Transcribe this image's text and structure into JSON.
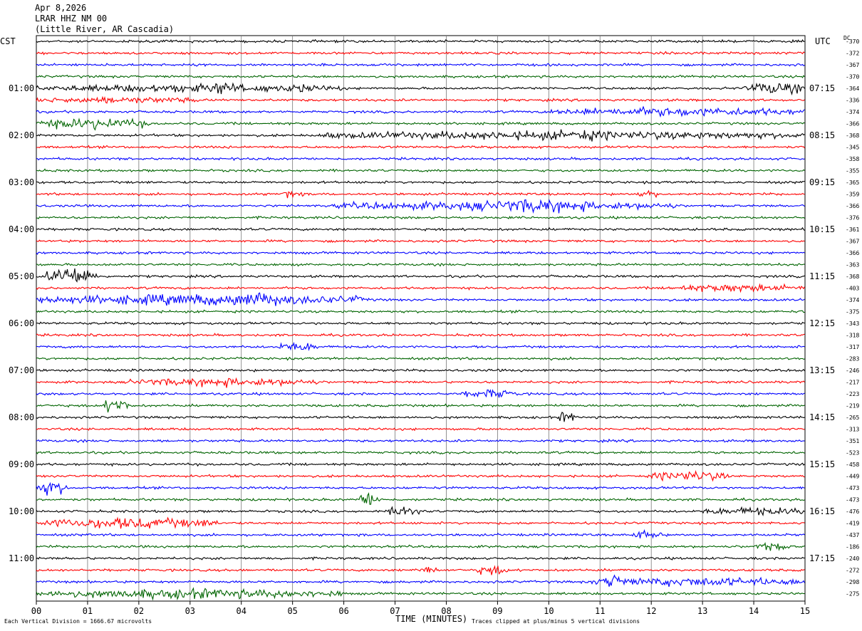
{
  "header": {
    "date": "Apr 8,2026",
    "station": "LRAR HHZ NM 00",
    "location": "(Little River, AR Cascadia)"
  },
  "left_tz": "CST",
  "right_tz": "UTC",
  "dc_label": "DC",
  "x_axis_title": "TIME (MINUTES)",
  "footer_left": "Each Vertical Division = 1666.67 microvolts",
  "footer_right": "Traces clipped at plus/minus 5 vertical divisions",
  "chart_data": {
    "type": "line",
    "title": "LRAR HHZ NM 00",
    "xlabel": "TIME (MINUTES)",
    "x_ticks": [
      "00",
      "01",
      "02",
      "03",
      "04",
      "05",
      "06",
      "07",
      "08",
      "09",
      "10",
      "11",
      "12",
      "13",
      "14",
      "15"
    ],
    "xlim": [
      0,
      15
    ],
    "trace_count": 48,
    "trace_colors": [
      "#000000",
      "#ff0000",
      "#0000ff",
      "#006400"
    ],
    "left_hour_labels": [
      "01:00",
      "02:00",
      "03:00",
      "04:00",
      "05:00",
      "06:00",
      "07:00",
      "08:00",
      "09:00",
      "10:00",
      "11:00"
    ],
    "right_hour_labels": [
      "07:15",
      "08:15",
      "09:15",
      "10:15",
      "11:15",
      "12:15",
      "13:15",
      "14:15",
      "15:15",
      "16:15",
      "17:15"
    ],
    "dc_offsets": [
      "-370",
      "-372",
      "-367",
      "-370",
      "-364",
      "-336",
      "-374",
      "-366",
      "-368",
      "-345",
      "-358",
      "-355",
      "-365",
      "-359",
      "-366",
      "-376",
      "-361",
      "-367",
      "-366",
      "-363",
      "-368",
      "-403",
      "-374",
      "-375",
      "-343",
      "-318",
      "-317",
      "-283",
      "-246",
      "-217",
      "-223",
      "-219",
      "-265",
      "-313",
      "-351",
      "-523",
      "-458",
      "-449",
      "-473",
      "-473",
      "-476",
      "-419",
      "-437",
      "-186",
      "-240",
      "-272",
      "-298",
      "-275"
    ],
    "events": [
      {
        "trace": 4,
        "start_min": 0.0,
        "end_min": 6.0,
        "amplitude": 1.3
      },
      {
        "trace": 4,
        "start_min": 3.3,
        "end_min": 3.9,
        "amplitude": 2.6
      },
      {
        "trace": 4,
        "start_min": 4.9,
        "end_min": 5.4,
        "amplitude": 1.8
      },
      {
        "trace": 4,
        "start_min": 13.8,
        "end_min": 15.0,
        "amplitude": 2.2
      },
      {
        "trace": 5,
        "start_min": 0.0,
        "end_min": 3.2,
        "amplitude": 1.0
      },
      {
        "trace": 6,
        "start_min": 10.0,
        "end_min": 15.0,
        "amplitude": 1.5
      },
      {
        "trace": 7,
        "start_min": 0.0,
        "end_min": 2.2,
        "amplitude": 2.0
      },
      {
        "trace": 8,
        "start_min": 5.5,
        "end_min": 15.0,
        "amplitude": 1.5
      },
      {
        "trace": 8,
        "start_min": 10.4,
        "end_min": 11.0,
        "amplitude": 2.4
      },
      {
        "trace": 13,
        "start_min": 4.8,
        "end_min": 5.2,
        "amplitude": 1.5
      },
      {
        "trace": 13,
        "start_min": 11.7,
        "end_min": 12.1,
        "amplitude": 1.4
      },
      {
        "trace": 14,
        "start_min": 5.8,
        "end_min": 12.5,
        "amplitude": 1.6
      },
      {
        "trace": 14,
        "start_min": 8.5,
        "end_min": 11.0,
        "amplitude": 2.6
      },
      {
        "trace": 20,
        "start_min": 0.2,
        "end_min": 1.2,
        "amplitude": 4.0
      },
      {
        "trace": 21,
        "start_min": 12.3,
        "end_min": 15.0,
        "amplitude": 1.3
      },
      {
        "trace": 22,
        "start_min": 0.0,
        "end_min": 6.5,
        "amplitude": 2.0
      },
      {
        "trace": 22,
        "start_min": 3.5,
        "end_min": 5.0,
        "amplitude": 3.0
      },
      {
        "trace": 26,
        "start_min": 4.7,
        "end_min": 5.5,
        "amplitude": 1.6
      },
      {
        "trace": 29,
        "start_min": 1.8,
        "end_min": 5.5,
        "amplitude": 1.4
      },
      {
        "trace": 30,
        "start_min": 8.3,
        "end_min": 9.4,
        "amplitude": 1.5
      },
      {
        "trace": 31,
        "start_min": 1.3,
        "end_min": 1.8,
        "amplitude": 3.0
      },
      {
        "trace": 32,
        "start_min": 10.2,
        "end_min": 10.5,
        "amplitude": 2.4
      },
      {
        "trace": 37,
        "start_min": 12.0,
        "end_min": 13.5,
        "amplitude": 2.0
      },
      {
        "trace": 38,
        "start_min": 0.0,
        "end_min": 0.6,
        "amplitude": 3.0
      },
      {
        "trace": 39,
        "start_min": 6.3,
        "end_min": 6.7,
        "amplitude": 3.0
      },
      {
        "trace": 40,
        "start_min": 6.9,
        "end_min": 7.5,
        "amplitude": 2.5
      },
      {
        "trace": 40,
        "start_min": 13.0,
        "end_min": 15.0,
        "amplitude": 1.3
      },
      {
        "trace": 41,
        "start_min": 0.0,
        "end_min": 3.6,
        "amplitude": 2.0
      },
      {
        "trace": 42,
        "start_min": 11.6,
        "end_min": 12.2,
        "amplitude": 1.6
      },
      {
        "trace": 43,
        "start_min": 14.0,
        "end_min": 14.7,
        "amplitude": 1.4
      },
      {
        "trace": 45,
        "start_min": 7.4,
        "end_min": 7.8,
        "amplitude": 1.4
      },
      {
        "trace": 45,
        "start_min": 8.6,
        "end_min": 9.2,
        "amplitude": 1.8
      },
      {
        "trace": 46,
        "start_min": 10.8,
        "end_min": 15.0,
        "amplitude": 1.5
      },
      {
        "trace": 46,
        "start_min": 11.1,
        "end_min": 11.4,
        "amplitude": 4.0
      },
      {
        "trace": 47,
        "start_min": 0.0,
        "end_min": 6.0,
        "amplitude": 1.7
      }
    ]
  }
}
